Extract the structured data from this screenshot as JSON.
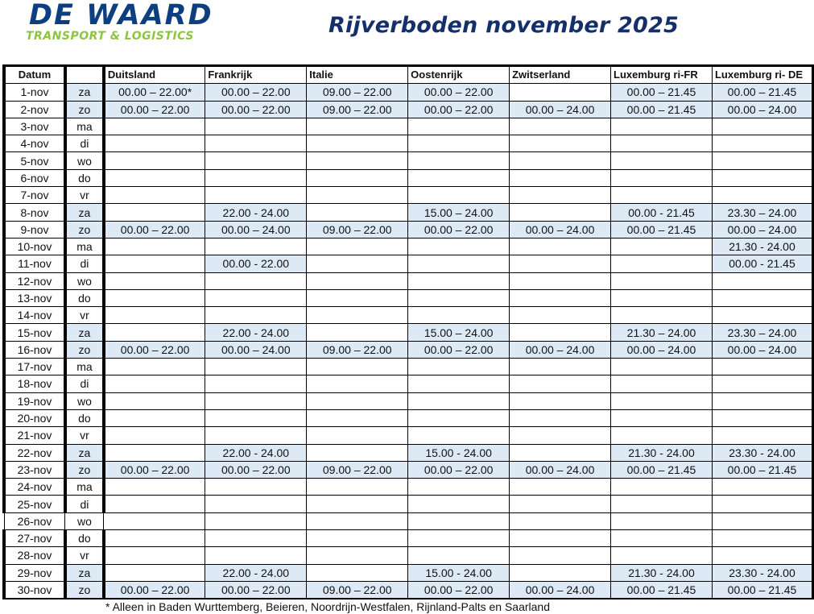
{
  "logo": {
    "line1": "DE WAARD",
    "line2": "TRANSPORT & LOGISTICS",
    "colors": {
      "primary": "#0d3f80",
      "secondary": "#8cc53f"
    }
  },
  "title": "Rijverboden november 2025",
  "table": {
    "headers": [
      "Datum",
      "",
      "Duitsland",
      "Frankrijk",
      "Italie",
      "Oostenrijk",
      "Zwitserland",
      "Luxemburg ri-FR",
      "Luxemburg ri- DE"
    ],
    "shade_color": "#ddeaf6",
    "rows": [
      {
        "date": "1-nov",
        "day": "za",
        "cells": [
          "00.00 – 22.00*",
          "00.00 – 22.00",
          "09.00 – 22.00",
          "00.00 – 22.00",
          "",
          "00.00 – 21.45",
          "00.00 – 21.45"
        ]
      },
      {
        "date": "2-nov",
        "day": "zo",
        "cells": [
          "00.00 – 22.00",
          "00.00 – 22.00",
          "09.00 – 22.00",
          "00.00 – 22.00",
          "00.00 – 24.00",
          "00.00 – 21.45",
          "00.00 – 24.00"
        ]
      },
      {
        "date": "3-nov",
        "day": "ma",
        "cells": [
          "",
          "",
          "",
          "",
          "",
          "",
          ""
        ]
      },
      {
        "date": "4-nov",
        "day": "di",
        "cells": [
          "",
          "",
          "",
          "",
          "",
          "",
          ""
        ]
      },
      {
        "date": "5-nov",
        "day": "wo",
        "cells": [
          "",
          "",
          "",
          "",
          "",
          "",
          ""
        ]
      },
      {
        "date": "6-nov",
        "day": "do",
        "cells": [
          "",
          "",
          "",
          "",
          "",
          "",
          ""
        ]
      },
      {
        "date": "7-nov",
        "day": "vr",
        "cells": [
          "",
          "",
          "",
          "",
          "",
          "",
          ""
        ]
      },
      {
        "date": "8-nov",
        "day": "za",
        "cells": [
          "",
          "22.00 - 24.00",
          "",
          "15.00 – 24.00",
          "",
          "00.00 - 21.45",
          "23.30 – 24.00"
        ]
      },
      {
        "date": "9-nov",
        "day": "zo",
        "cells": [
          "00.00 – 22.00",
          "00.00 – 24.00",
          "09.00 – 22.00",
          "00.00 – 22.00",
          "00.00 – 24.00",
          "00.00 – 21.45",
          "00.00 – 24.00"
        ]
      },
      {
        "date": "10-nov",
        "day": "ma",
        "cells": [
          "",
          "",
          "",
          "",
          "",
          "",
          "21.30 - 24.00"
        ]
      },
      {
        "date": "11-nov",
        "day": "di",
        "cells": [
          "",
          "00.00 - 22.00",
          "",
          "",
          "",
          "",
          "00.00 - 21.45"
        ]
      },
      {
        "date": "12-nov",
        "day": "wo",
        "cells": [
          "",
          "",
          "",
          "",
          "",
          "",
          ""
        ]
      },
      {
        "date": "13-nov",
        "day": "do",
        "cells": [
          "",
          "",
          "",
          "",
          "",
          "",
          ""
        ]
      },
      {
        "date": "14-nov",
        "day": "vr",
        "cells": [
          "",
          "",
          "",
          "",
          "",
          "",
          ""
        ]
      },
      {
        "date": "15-nov",
        "day": "za",
        "cells": [
          "",
          "22.00 - 24.00",
          "",
          "15.00 – 24.00",
          "",
          "21.30 – 24.00",
          "23.30 – 24.00"
        ]
      },
      {
        "date": "16-nov",
        "day": "zo",
        "cells": [
          "00.00 – 22.00",
          "00.00 – 24.00",
          "09.00 – 22.00",
          "00.00 – 22.00",
          "00.00 – 24.00",
          "00.00 – 24.00",
          "00.00 – 24.00"
        ]
      },
      {
        "date": "17-nov",
        "day": "ma",
        "cells": [
          "",
          "",
          "",
          "",
          "",
          "",
          ""
        ]
      },
      {
        "date": "18-nov",
        "day": "di",
        "cells": [
          "",
          "",
          "",
          "",
          "",
          "",
          ""
        ]
      },
      {
        "date": "19-nov",
        "day": "wo",
        "cells": [
          "",
          "",
          "",
          "",
          "",
          "",
          ""
        ]
      },
      {
        "date": "20-nov",
        "day": "do",
        "cells": [
          "",
          "",
          "",
          "",
          "",
          "",
          ""
        ]
      },
      {
        "date": "21-nov",
        "day": "vr",
        "cells": [
          "",
          "",
          "",
          "",
          "",
          "",
          ""
        ]
      },
      {
        "date": "22-nov",
        "day": "za",
        "cells": [
          "",
          "22.00 - 24.00",
          "",
          "15.00 - 24.00",
          "",
          "21.30 - 24.00",
          "23.30 - 24.00"
        ]
      },
      {
        "date": "23-nov",
        "day": "zo",
        "cells": [
          "00.00 – 22.00",
          "00.00 – 22.00",
          "09.00 – 22.00",
          "00.00 – 22.00",
          "00.00 – 24.00",
          "00.00 – 21.45",
          "00.00 – 21.45"
        ]
      },
      {
        "date": "24-nov",
        "day": "ma",
        "cells": [
          "",
          "",
          "",
          "",
          "",
          "",
          ""
        ]
      },
      {
        "date": "25-nov",
        "day": "di",
        "cells": [
          "",
          "",
          "",
          "",
          "",
          "",
          ""
        ]
      },
      {
        "date": "26-nov",
        "day": "wo",
        "cells": [
          "",
          "",
          "",
          "",
          "",
          "",
          ""
        ]
      },
      {
        "date": "27-nov",
        "day": "do",
        "cells": [
          "",
          "",
          "",
          "",
          "",
          "",
          ""
        ]
      },
      {
        "date": "28-nov",
        "day": "vr",
        "cells": [
          "",
          "",
          "",
          "",
          "",
          "",
          ""
        ]
      },
      {
        "date": "29-nov",
        "day": "za",
        "cells": [
          "",
          "22.00 - 24.00",
          "",
          "15.00 - 24.00",
          "",
          "21.30 - 24.00",
          "23.30 - 24.00"
        ]
      },
      {
        "date": "30-nov",
        "day": "zo",
        "cells": [
          "00.00 – 22.00",
          "00.00 – 22.00",
          "09.00 – 22.00",
          "00.00 – 22.00",
          "00.00 – 24.00",
          "00.00 – 21.45",
          "00.00 – 21.45"
        ]
      }
    ]
  },
  "footnote": "* Alleen in Baden Wurttemberg, Beieren, Noordrijn-Westfalen, Rijnland-Palts en Saarland"
}
